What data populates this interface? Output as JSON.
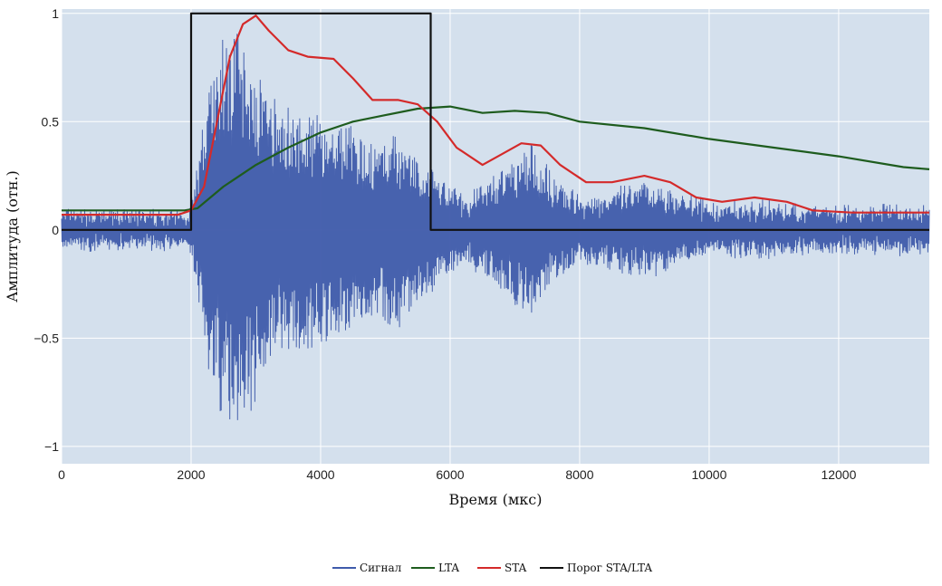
{
  "chart_data": {
    "type": "line",
    "title": "",
    "xlabel": "Время (мкс)",
    "ylabel": "Амплитуда (отн.)",
    "xlim": [
      0,
      13400
    ],
    "ylim": [
      -1.08,
      1.02
    ],
    "xticks": [
      0,
      2000,
      4000,
      6000,
      8000,
      10000,
      12000
    ],
    "xtick_labels": [
      "0",
      "2000",
      "4000",
      "6000",
      "8000",
      "10000",
      "12000"
    ],
    "yticks": [
      1,
      0.5,
      0,
      -0.5,
      -1
    ],
    "ytick_labels": [
      "1",
      "0.5",
      "0",
      "−0.5",
      "−1"
    ],
    "grid": true,
    "legend_position": "bottom-center",
    "background": "#d4e0ed",
    "series": [
      {
        "name": "Сигнал",
        "color": "#3f5bab",
        "style": "oscillating-signal",
        "noise_amplitude": 0.05,
        "envelope": [
          [
            0,
            0.08
          ],
          [
            1950,
            0.08
          ],
          [
            2100,
            0.3
          ],
          [
            2300,
            0.75
          ],
          [
            2600,
            0.97
          ],
          [
            2900,
            0.85
          ],
          [
            3300,
            0.6
          ],
          [
            3800,
            0.55
          ],
          [
            4300,
            0.5
          ],
          [
            4800,
            0.4
          ],
          [
            5200,
            0.45
          ],
          [
            5500,
            0.35
          ],
          [
            5800,
            0.25
          ],
          [
            6200,
            0.15
          ],
          [
            6500,
            0.2
          ],
          [
            7000,
            0.35
          ],
          [
            7300,
            0.4
          ],
          [
            7600,
            0.25
          ],
          [
            8000,
            0.15
          ],
          [
            8600,
            0.18
          ],
          [
            9000,
            0.22
          ],
          [
            9400,
            0.18
          ],
          [
            10000,
            0.12
          ],
          [
            11000,
            0.12
          ],
          [
            12000,
            0.1
          ],
          [
            13400,
            0.1
          ]
        ]
      },
      {
        "name": "LTA",
        "color": "#1e5c1e",
        "points": [
          [
            0,
            0.09
          ],
          [
            1900,
            0.09
          ],
          [
            2100,
            0.1
          ],
          [
            2500,
            0.2
          ],
          [
            3000,
            0.3
          ],
          [
            3500,
            0.38
          ],
          [
            4000,
            0.45
          ],
          [
            4500,
            0.5
          ],
          [
            5000,
            0.53
          ],
          [
            5500,
            0.56
          ],
          [
            6000,
            0.57
          ],
          [
            6500,
            0.54
          ],
          [
            7000,
            0.55
          ],
          [
            7500,
            0.54
          ],
          [
            8000,
            0.5
          ],
          [
            9000,
            0.47
          ],
          [
            10000,
            0.42
          ],
          [
            11000,
            0.38
          ],
          [
            12000,
            0.34
          ],
          [
            13000,
            0.29
          ],
          [
            13400,
            0.28
          ]
        ]
      },
      {
        "name": "STA",
        "color": "#d42a2a",
        "points": [
          [
            0,
            0.07
          ],
          [
            1800,
            0.07
          ],
          [
            2000,
            0.09
          ],
          [
            2200,
            0.2
          ],
          [
            2400,
            0.5
          ],
          [
            2600,
            0.8
          ],
          [
            2800,
            0.95
          ],
          [
            3000,
            0.99
          ],
          [
            3200,
            0.92
          ],
          [
            3500,
            0.83
          ],
          [
            3800,
            0.8
          ],
          [
            4200,
            0.79
          ],
          [
            4500,
            0.7
          ],
          [
            4800,
            0.6
          ],
          [
            5200,
            0.6
          ],
          [
            5500,
            0.58
          ],
          [
            5800,
            0.5
          ],
          [
            6100,
            0.38
          ],
          [
            6500,
            0.3
          ],
          [
            6800,
            0.35
          ],
          [
            7100,
            0.4
          ],
          [
            7400,
            0.39
          ],
          [
            7700,
            0.3
          ],
          [
            8100,
            0.22
          ],
          [
            8500,
            0.22
          ],
          [
            9000,
            0.25
          ],
          [
            9400,
            0.22
          ],
          [
            9800,
            0.15
          ],
          [
            10200,
            0.13
          ],
          [
            10700,
            0.15
          ],
          [
            11200,
            0.13
          ],
          [
            11600,
            0.09
          ],
          [
            12200,
            0.08
          ],
          [
            13400,
            0.08
          ]
        ]
      },
      {
        "name": "Порог STA/LTA",
        "color": "#111111",
        "points": [
          [
            0,
            0
          ],
          [
            2000,
            0
          ],
          [
            2000,
            1
          ],
          [
            5700,
            1
          ],
          [
            5700,
            0
          ],
          [
            13400,
            0
          ]
        ]
      }
    ]
  }
}
